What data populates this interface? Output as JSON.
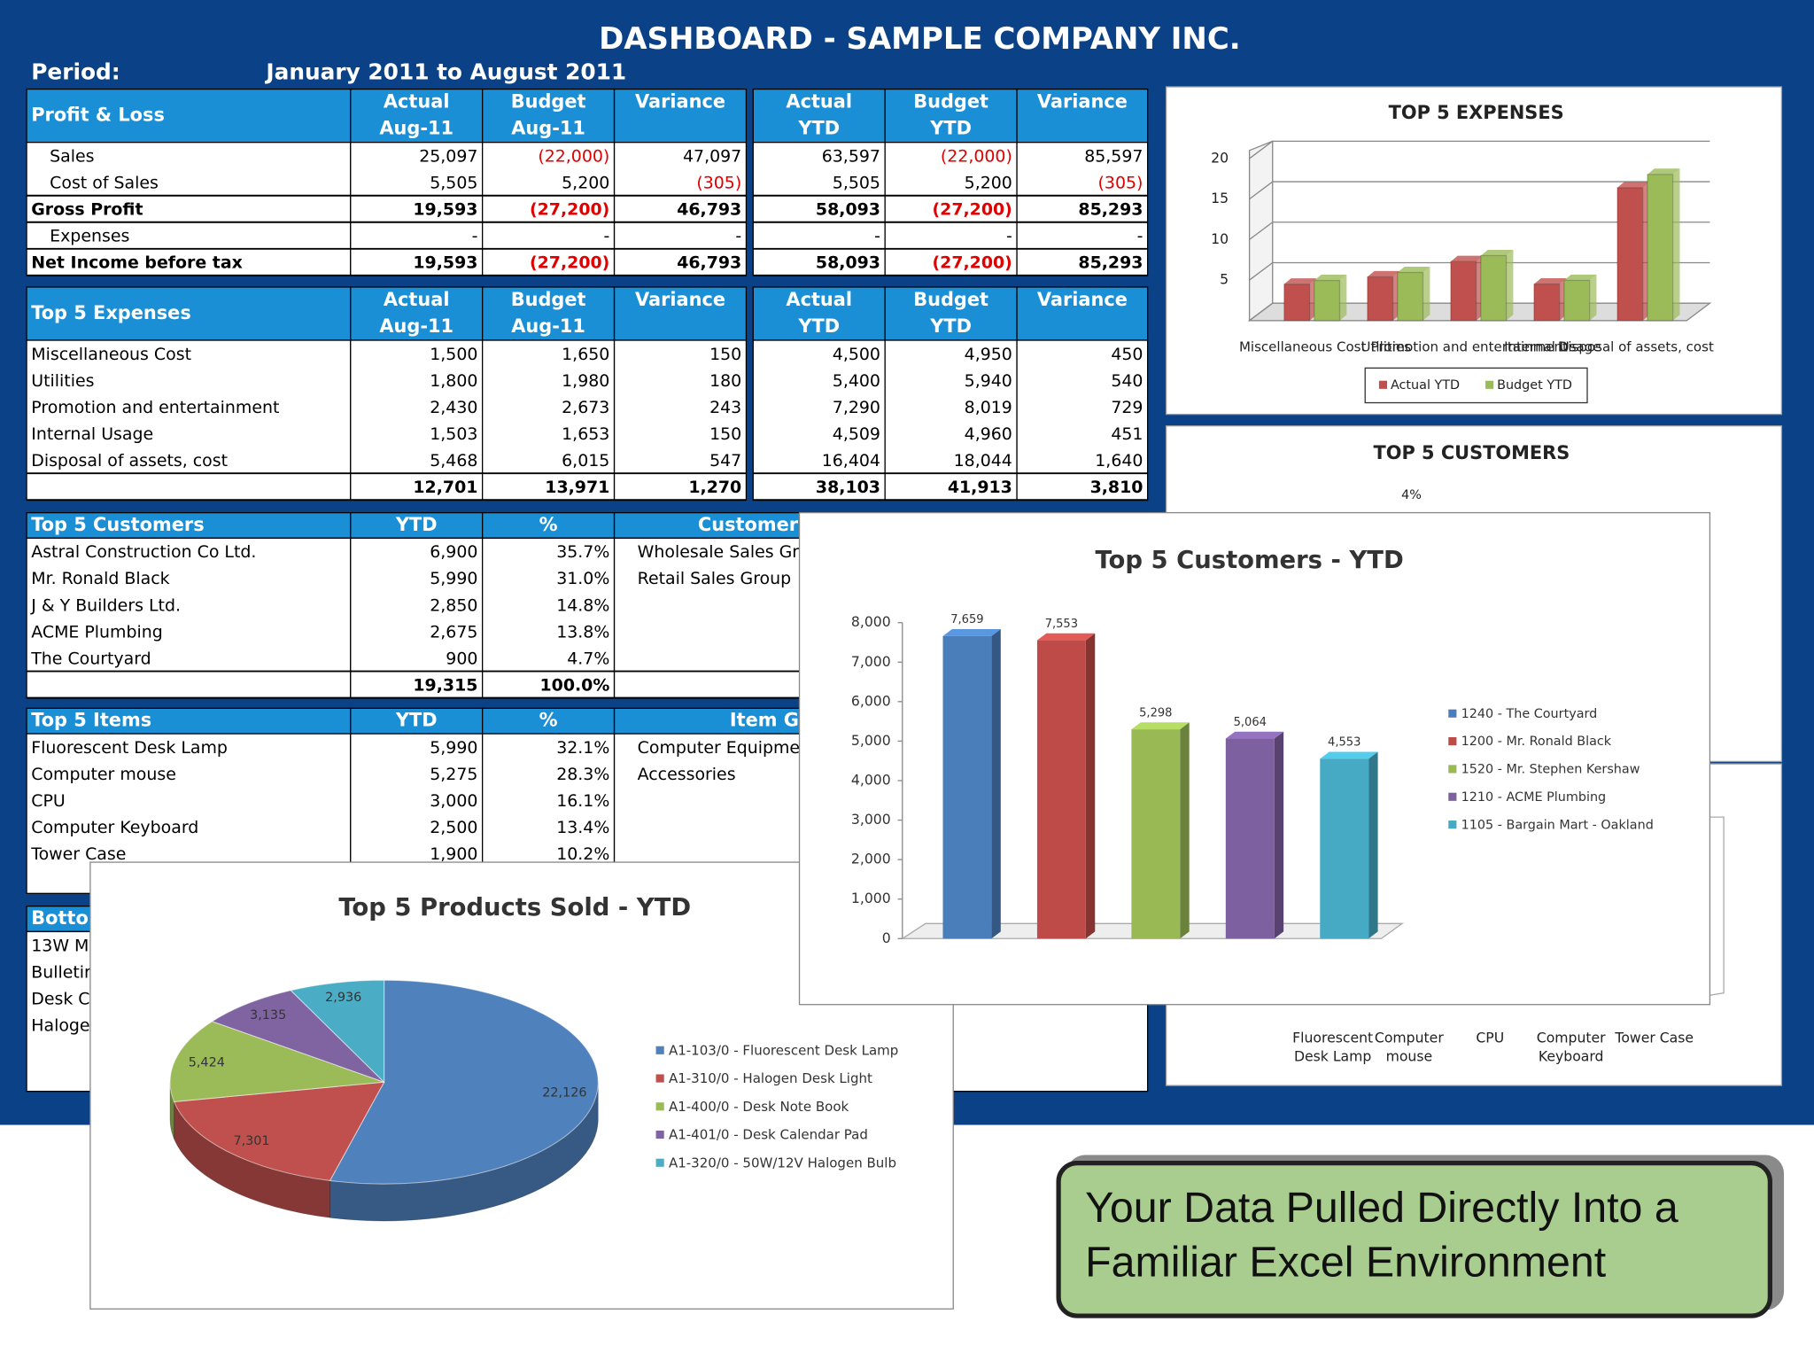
{
  "header": {
    "title": "DASHBOARD - SAMPLE COMPANY INC.",
    "period_label": "Period:",
    "period": "January 2011 to August 2011"
  },
  "tables": [
    {
      "header": [
        [
          "Profit & Loss"
        ],
        [
          "Actual",
          "Aug-11"
        ],
        [
          "Budget",
          "Aug-11"
        ],
        [
          "Variance"
        ],
        [
          "Actual",
          "YTD"
        ],
        [
          "Budget",
          "YTD"
        ],
        [
          "Variance"
        ]
      ],
      "rows": [
        [
          "Sales",
          "25,097",
          "(22,000)",
          "47,097",
          "63,597",
          "(22,000)",
          "85,597"
        ],
        [
          "Cost of Sales",
          "5,505",
          "5,200",
          "(305)",
          "5,505",
          "5,200",
          "(305)"
        ],
        [
          "Gross Profit",
          "19,593",
          "(27,200)",
          "46,793",
          "58,093",
          "(27,200)",
          "85,293"
        ],
        [
          "Expenses",
          "-",
          "-",
          "-",
          "-",
          "-",
          "-"
        ],
        [
          "Net Income before tax",
          "19,593",
          "(27,200)",
          "46,793",
          "58,093",
          "(27,200)",
          "85,293"
        ]
      ]
    },
    {
      "header": [
        [
          "Top 5 Expenses"
        ],
        [
          "Actual",
          "Aug-11"
        ],
        [
          "Budget",
          "Aug-11"
        ],
        [
          "Variance"
        ],
        [
          "Actual",
          "YTD"
        ],
        [
          "Budget",
          "YTD"
        ],
        [
          "Variance"
        ]
      ],
      "rows": [
        [
          "Miscellaneous Cost",
          "1,500",
          "1,650",
          "150",
          "4,500",
          "4,950",
          "450"
        ],
        [
          "Utilities",
          "1,800",
          "1,980",
          "180",
          "5,400",
          "5,940",
          "540"
        ],
        [
          "Promotion and entertainment",
          "2,430",
          "2,673",
          "243",
          "7,290",
          "8,019",
          "729"
        ],
        [
          "Internal Usage",
          "1,503",
          "1,653",
          "150",
          "4,509",
          "4,960",
          "451"
        ],
        [
          "Disposal of assets, cost",
          "5,468",
          "6,015",
          "547",
          "16,404",
          "18,044",
          "1,640"
        ],
        [
          null,
          "12,701",
          "13,971",
          "1,270",
          "38,103",
          "41,913",
          "3,810"
        ]
      ]
    },
    {
      "header": [
        [
          "Top 5 Customers"
        ],
        [
          "YTD"
        ],
        [
          "%"
        ],
        [
          "Customer Groups"
        ]
      ],
      "rows": [
        [
          "Astral Construction Co Ltd.",
          "6,900",
          "35.7%",
          "Wholesale Sales Group"
        ],
        [
          "Mr. Ronald Black",
          "5,990",
          "31.0%",
          "Retail Sales Group"
        ],
        [
          "J & Y Builders Ltd.",
          "2,850",
          "14.8%",
          null
        ],
        [
          "ACME Plumbing",
          "2,675",
          "13.8%",
          null
        ],
        [
          "The Courtyard",
          "900",
          "4.7%",
          null
        ],
        [
          null,
          "19,315",
          "100.0%",
          null
        ]
      ]
    },
    {
      "header": [
        [
          "Top 5 Items"
        ],
        [
          "YTD"
        ],
        [
          "%"
        ],
        [
          "Item Group"
        ]
      ],
      "rows": [
        [
          "Fluorescent Desk Lamp",
          "5,990",
          "32.1%",
          "Computer Equipment"
        ],
        [
          "Computer mouse",
          "5,275",
          "28.3%",
          "Accessories"
        ],
        [
          "CPU",
          "3,000",
          "16.1%",
          null
        ],
        [
          "Computer Keyboard",
          "2,500",
          "13.4%",
          null
        ],
        [
          "Tower Case",
          "1,900",
          "10.2%",
          null
        ]
      ]
    },
    {
      "header": [
        [
          "Botto"
        ]
      ],
      "rows": [
        [
          "13W Mi"
        ],
        [
          "Bulletir"
        ],
        [
          "Desk C"
        ],
        [
          "Haloge"
        ]
      ]
    }
  ],
  "charts": [
    {
      "type": "bar",
      "title": "TOP 5 EXPENSES",
      "categories": [
        "Miscellaneous Cost",
        "Utilities",
        "Promotion and entertainment",
        "Internal Usage",
        "Disposal of assets, cost"
      ],
      "series": [
        {
          "name": "Actual YTD",
          "color": "#c0504d",
          "values": [
            4.5,
            5.4,
            7.29,
            4.509,
            16.404
          ]
        },
        {
          "name": "Budget YTD",
          "color": "#9bbb59",
          "values": [
            4.95,
            5.94,
            8.019,
            4.96,
            18.044
          ]
        }
      ],
      "ylim": [
        0,
        20
      ],
      "yticks": [
        5,
        10,
        15,
        20
      ],
      "grid": true
    },
    {
      "type": "pie-hidden",
      "title": "TOP 5 CUSTOMERS",
      "annotation": "4%"
    },
    {
      "type": "bar-hidden",
      "categories": [
        "Fluorescent Desk Lamp",
        "Computer mouse",
        "CPU",
        "Computer Keyboard",
        "Tower Case"
      ]
    },
    {
      "type": "colbar",
      "title": "Top 5 Customers - YTD",
      "categories": [
        "1240 - The Courtyard",
        "1200 - Mr. Ronald Black",
        "1520 - Mr. Stephen Kershaw",
        "1210 - ACME Plumbing",
        "1105 - Bargain Mart - Oakland"
      ],
      "values": [
        7659,
        7553,
        5298,
        5064,
        4553
      ],
      "value_labels": [
        "7,659",
        "7,553",
        "5,298",
        "5,064",
        "4,553"
      ],
      "colors": [
        "#4a7ebb",
        "#be4b48",
        "#98b954",
        "#7d60a0",
        "#46aac5"
      ],
      "ylim": [
        0,
        8000
      ],
      "yticks": [
        0,
        {
          "value": 1000,
          "label": "1,000"
        },
        {
          "value": 2000,
          "label": "2,000"
        },
        {
          "value": 3000,
          "label": "3,000"
        },
        {
          "value": 4000,
          "label": "4,000"
        },
        {
          "value": 5000,
          "label": "5,000"
        },
        {
          "value": 6000,
          "label": "6,000"
        },
        {
          "value": 7000,
          "label": "7,000"
        },
        {
          "value": 8000,
          "label": "8,000"
        }
      ]
    },
    {
      "type": "pie",
      "title": "Top 5 Products Sold - YTD",
      "categories": [
        "A1-103/0 - Fluorescent Desk Lamp",
        "A1-310/0 - Halogen Desk Light",
        "A1-400/0 - Desk Note Book",
        "A1-401/0 - Desk Calendar Pad",
        "A1-320/0 - 50W/12V Halogen Bulb"
      ],
      "values": [
        22126,
        7301,
        5424,
        3135,
        2936
      ],
      "value_labels": [
        "22,126",
        "7,301",
        "5,424",
        "3,135",
        "2,936"
      ],
      "colors": [
        "#4f81bd",
        "#c0504d",
        "#9bbb59",
        "#8064a2",
        "#4bacc6"
      ]
    }
  ],
  "callout": [
    "Your Data Pulled Directly Into a",
    "Familiar Excel Environment"
  ]
}
